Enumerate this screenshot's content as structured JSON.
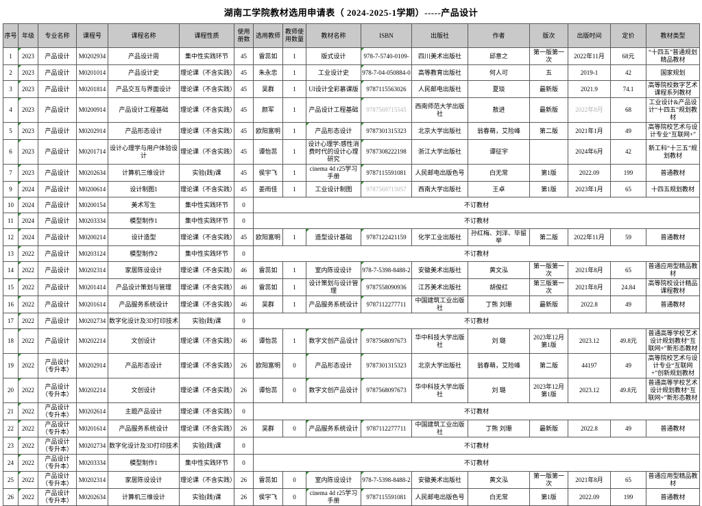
{
  "title": "湖南工学院教材选用申请表（ 2024-2025-1学期）-----产品设计",
  "colors": {
    "header_bg": "#c9c9c9",
    "border": "#595959",
    "flag_marker_green": "#2f8f2f",
    "muted_text_gray": "#b3b3b3"
  },
  "table": {
    "columns": [
      {
        "key": "no",
        "label": "序号"
      },
      {
        "key": "grade",
        "label": "年级"
      },
      {
        "key": "major",
        "label": "专业名称"
      },
      {
        "key": "course_id",
        "label": "课程号"
      },
      {
        "key": "course_name",
        "label": "课程名称"
      },
      {
        "key": "course_type",
        "label": "课程性质"
      },
      {
        "key": "copies",
        "label": "使用册数"
      },
      {
        "key": "teacher",
        "label": "选用教师"
      },
      {
        "key": "teacher_count",
        "label": "教师使用数量"
      },
      {
        "key": "book_name",
        "label": "教材名称"
      },
      {
        "key": "isbn",
        "label": "ISBN"
      },
      {
        "key": "publisher",
        "label": "出版社"
      },
      {
        "key": "author",
        "label": "作者"
      },
      {
        "key": "edition",
        "label": "版次"
      },
      {
        "key": "pub_date",
        "label": "出版时间"
      },
      {
        "key": "price",
        "label": "定价"
      },
      {
        "key": "book_type",
        "label": "教材类型"
      }
    ],
    "no_order_label": "不订教材",
    "rows": [
      {
        "cells": [
          "1",
          "2023",
          "产品设计",
          "M0202934",
          "产品设计周",
          "集中性实践环节",
          "45",
          "雷蕊如",
          "1",
          "版式设计",
          "978-7-5740-0109-",
          "四川美术出版社",
          "邱意之",
          "第一版第一次",
          "2022年11月",
          "68元",
          "“十四五”普通规划精品教材"
        ],
        "flags": [
          "grade",
          "isbn"
        ]
      },
      {
        "cells": [
          "2",
          "2023",
          "产品设计",
          "M0201014",
          "产品设计史",
          "理论课（不含实践）",
          "45",
          "朱永忠",
          "1",
          "工业设计史",
          "978-7-04-050884-0",
          "高等教育出版社",
          "何人可",
          "五",
          "2019-1",
          "42",
          "国家规划"
        ],
        "flags": [
          "grade",
          "isbn"
        ]
      },
      {
        "cells": [
          "3",
          "2023",
          "产品设计",
          "M0201814",
          "产品交互与界面设计",
          "理论课（不含实践）",
          "45",
          "吴群",
          "1",
          "UI设计全彩慕课版",
          "9787115563026",
          "人民邮电出版社",
          "夏琰",
          "最新版",
          "2021.9",
          "74.1",
          "高等院校数字艺术课程系列教材"
        ],
        "flags": [
          "grade",
          "isbn"
        ]
      },
      {
        "cells": [
          "4",
          "2023",
          "产品设计",
          "M0200914",
          "产品设计工程基础",
          "理论课（不含实践）",
          "45",
          "颜军",
          "1",
          "产品设计工程基础",
          "9787569715545",
          "西南师范大学出版社",
          "敖进",
          "最新版",
          "2022年8月",
          "68",
          "工业设计&产品设计“十四五”规划教材"
        ],
        "flags": [
          "grade",
          "isbn"
        ],
        "gray": [
          "isbn",
          "pub_date"
        ]
      },
      {
        "cells": [
          "5",
          "2023",
          "产品设计",
          "M0202914",
          "产品形态设计",
          "理论课（不含实践）",
          "45",
          "欧阳富明",
          "1",
          "产品形态设计",
          "9787301315323",
          "北京大学出版社",
          "翁春萌，艾险峰",
          "第二版",
          "2021年1月",
          "49",
          "高等院校艺术与设计专业“互联网+”"
        ],
        "flags": [
          "grade",
          "book_name",
          "isbn"
        ]
      },
      {
        "cells": [
          "6",
          "2023",
          "产品设计",
          "M0201714",
          "设计心理学与用户体验设计",
          "理论课（不含实践）",
          "45",
          "谭怡蕊",
          "1",
          "设计心理学:感性消费时代的设计心理研究",
          "9787308222198",
          "浙江大学出版社",
          "谭征宇",
          "",
          "2024年6月",
          "42",
          "新工科“十三五”规划教材"
        ],
        "flags": [
          "grade",
          "isbn"
        ]
      },
      {
        "cells": [
          "7",
          "2023",
          "产品设计",
          "M0202634",
          "计算机三维设计",
          "实验(践)课",
          "45",
          "侯宇飞",
          "1",
          "cinema 4d r25学习手册",
          "9787115591081",
          "人民邮电出版色号",
          "白无常",
          "第1版",
          "2022.09",
          "199",
          "普通教材"
        ],
        "flags": [
          "grade",
          "isbn"
        ]
      },
      {
        "cells": [
          "9",
          "2024",
          "产品设计",
          "M0200614",
          "设计制图1",
          "理论课（不含实践）",
          "45",
          "姜雨佳",
          "1",
          "工业设计制图",
          "9787569715057",
          "西南大学出版社",
          "王卓",
          "第1版",
          "2023年1月",
          "65",
          "十四五规划教材"
        ],
        "flags": [
          "grade",
          "isbn"
        ],
        "gray": [
          "isbn"
        ]
      },
      {
        "cells": [
          "10",
          "2024",
          "产品设计",
          "M0200154",
          "美术写生",
          "集中性实践环节",
          "0"
        ],
        "merged": "不订教材",
        "flags": [
          "grade"
        ]
      },
      {
        "cells": [
          "11",
          "2024",
          "产品设计",
          "M0203334",
          "模型制作1",
          "集中性实践环节",
          "0"
        ],
        "merged": "不订教材",
        "flags": [
          "grade"
        ]
      },
      {
        "cells": [
          "12",
          "2024",
          "产品设计",
          "M0200214",
          "设计造型",
          "理论课（不含实践）",
          "45",
          "欧阳富明",
          "1",
          "造型设计基础",
          "9787122421159",
          "化学工业出版社",
          "孙红梅、刘洋、毕留举",
          "第二版",
          "2022年11月",
          "59",
          "普通教材"
        ],
        "flags": [
          "grade",
          "book_name",
          "isbn"
        ]
      },
      {
        "cells": [
          "13",
          "2022",
          "产品设计",
          "M0203124",
          "模型制作2",
          "集中性实践环节",
          "0"
        ],
        "merged": "不订教材",
        "flags": [
          "grade"
        ]
      },
      {
        "cells": [
          "14",
          "2022",
          "产品设计",
          "M0202314",
          "家居陈设设计",
          "理论课（不含实践）",
          "46",
          "雷蕊如",
          "1",
          "室内陈设设计",
          "978-7-5398-8488-2",
          "安徽美术出版社",
          "黄文泓",
          "第一版第一次",
          "2021年8月",
          "65",
          "普通应用型精品教材"
        ],
        "flags": [
          "grade",
          "isbn"
        ]
      },
      {
        "cells": [
          "15",
          "2022",
          "产品设计",
          "M0201414",
          "产品设计策划与管理",
          "理论课（不含实践）",
          "46",
          "雷蕊如",
          "1",
          "设计策划与设计管理",
          "9787558090936",
          "江苏美术出版社",
          "胡俊红",
          "第三版第一次",
          "2021年8月",
          "24.84",
          "高等院校设计精品课程教材"
        ],
        "flags": [
          "grade",
          "isbn"
        ]
      },
      {
        "cells": [
          "16",
          "2022",
          "产品设计",
          "M0201614",
          "产品服务系统设计",
          "理论课（不含实践）",
          "46",
          "吴群",
          "1",
          "产品服务系统设计",
          "9787112277711",
          "中国建筑工业出版社",
          "丁熊 刘珊",
          "最新版",
          "2022.8",
          "49",
          "普通教材"
        ],
        "flags": [
          "grade",
          "isbn"
        ]
      },
      {
        "cells": [
          "17",
          "2022",
          "产品设计",
          "M0202734",
          "数字化设计及3D打印技术",
          "实验(践)课",
          "0"
        ],
        "merged": "不订教材",
        "flags": [
          "grade"
        ]
      },
      {
        "cells": [
          "18",
          "2022",
          "产品设计",
          "M0202214",
          "文创设计",
          "理论课（不含实践）",
          "46",
          "谭怡蕊",
          "1",
          "数字文创产品设计",
          "9787568097673",
          "华中科技大学出版社",
          "刘 璐",
          "2023年12月第1版",
          "2023.12",
          "49.8元",
          "普通高等学校艺术设计规划教材“互联网+”新形态教材"
        ],
        "flags": [
          "grade",
          "book_name",
          "isbn"
        ]
      },
      {
        "cells": [
          "19",
          "2022",
          "产品设计（专升本）",
          "M0202914",
          "产品形态设计",
          "理论课（不含实践）",
          "26",
          "欧阳富明",
          "0",
          "产品形态设计",
          "9787301315323",
          "北京大学出版社",
          "翁春萌，艾险峰",
          "第二版",
          "44197",
          "49",
          "高等院校艺术与设计专业“互联网+”创新规划教材"
        ],
        "flags": [
          "grade",
          "book_name",
          "isbn"
        ]
      },
      {
        "cells": [
          "20",
          "2022",
          "产品设计（专升本）",
          "M0202214",
          "文创设计",
          "理论课（不含实践）",
          "26",
          "谭怡蕊",
          "0",
          "数字文创产品设计",
          "9787568097673",
          "华中科技大学出版社",
          "刘 璐",
          "2023年12月第1版",
          "2023.12",
          "49.8元",
          "普通高等学校艺术设计规划教材“互联网+”新形态教材"
        ],
        "flags": [
          "grade",
          "book_name",
          "isbn"
        ]
      },
      {
        "cells": [
          "21",
          "2022",
          "产品设计（专升本）",
          "M0202614",
          "主题产品设计",
          "理论课（不含实践）",
          "0"
        ],
        "merged": "不订教材",
        "flags": [
          "grade"
        ]
      },
      {
        "cells": [
          "22",
          "2022",
          "产品设计（专升本）",
          "M0201614",
          "产品服务系统设计",
          "理论课（不含实践）",
          "26",
          "吴群",
          "0",
          "产品服务系统设计",
          "9787112277711",
          "中国建筑工业出版社",
          "丁熊 刘珊",
          "最新版",
          "2022.8",
          "49",
          "普通教材"
        ],
        "flags": [
          "grade",
          "book_name",
          "isbn"
        ]
      },
      {
        "cells": [
          "23",
          "2022",
          "产品设计（专升本）",
          "M0202734",
          "数字化设计及3D打印技术",
          "实验(践)课",
          "0"
        ],
        "merged": "不订教材",
        "flags": [
          "grade"
        ]
      },
      {
        "cells": [
          "24",
          "2022",
          "产品设计（专升本）",
          "M0203334",
          "模型制作1",
          "集中性实践环节",
          "0"
        ],
        "merged": "不订教材",
        "flags": [
          "grade"
        ]
      },
      {
        "cells": [
          "25",
          "2022",
          "产品设计（专升本）",
          "M0202314",
          "家居陈设设计",
          "理论课（不含实践）",
          "26",
          "雷蕊如",
          "0",
          "室内陈设设计",
          "978-7-5398-8488-2",
          "安徽美术出版社",
          "黄文泓",
          "第一版第一次",
          "2021年8月",
          "65",
          "普通应用型精品教材"
        ],
        "flags": [
          "grade",
          "book_name",
          "isbn"
        ]
      },
      {
        "cells": [
          "26",
          "2022",
          "产品设计（专升本）",
          "M0202634",
          "计算机三维设计",
          "实验(践)课",
          "26",
          "侯宇飞",
          "0",
          "cinema 4d r25学习手册",
          "9787115591081",
          "人民邮电出版色号",
          "白无常",
          "第1版",
          "2022.09",
          "199",
          "普通教材"
        ],
        "flags": [
          "grade",
          "book_name",
          "isbn"
        ]
      }
    ]
  }
}
